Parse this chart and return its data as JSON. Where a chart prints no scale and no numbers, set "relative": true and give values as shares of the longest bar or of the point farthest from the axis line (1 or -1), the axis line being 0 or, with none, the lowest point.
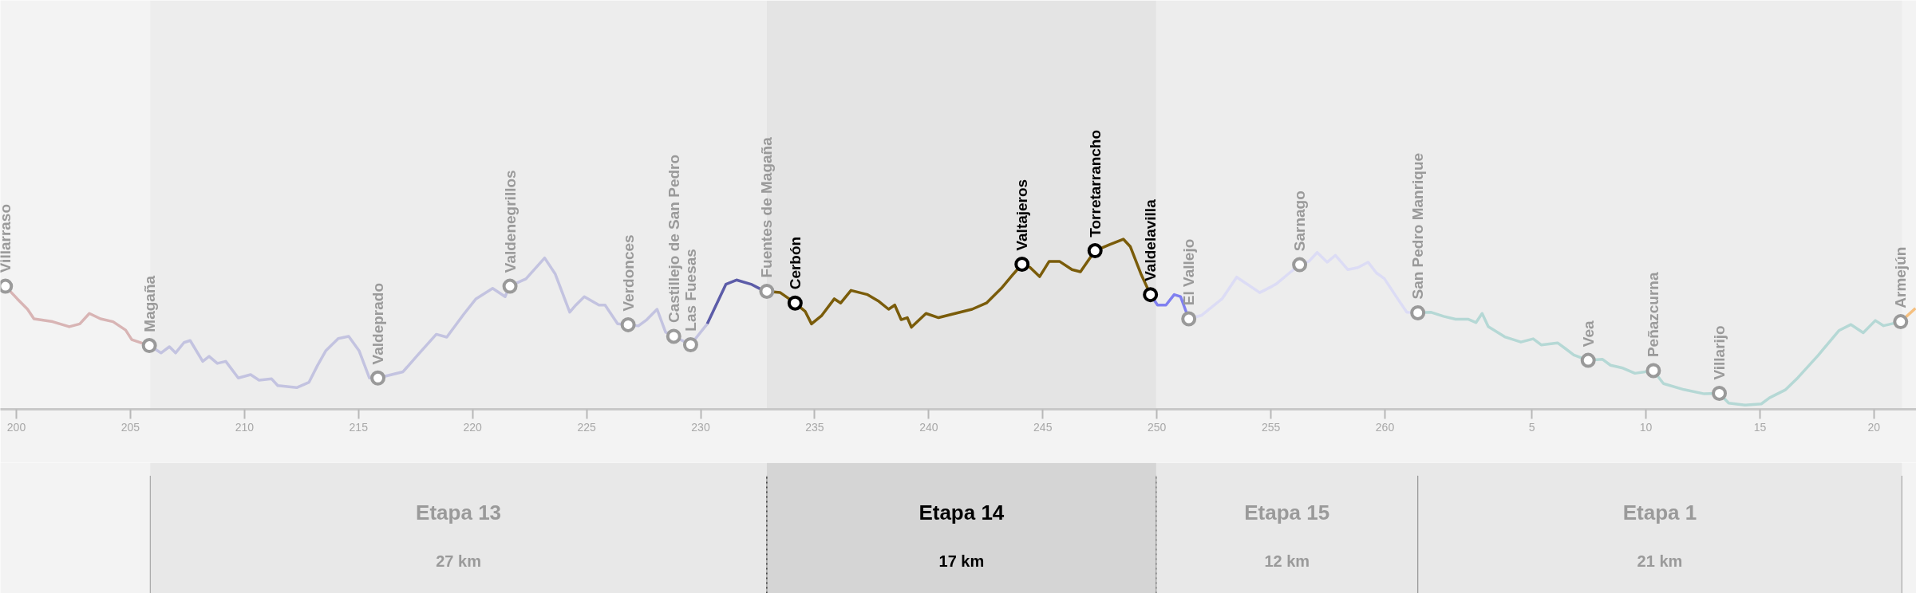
{
  "chart_data": {
    "type": "line",
    "relative": true,
    "line_style": "solid",
    "grid": false,
    "x2lim": [
      -62.14,
      21.86
    ],
    "x2ticks": [
      5,
      10,
      15,
      20
    ],
    "xlim": [
      199.3,
      283.3
    ],
    "xticks": [
      200,
      205,
      210,
      215,
      220,
      225,
      230,
      235,
      240,
      245,
      250,
      255,
      260
    ],
    "series": [
      {
        "color": "#d8b4b4",
        "x": [
          199.52,
          200.04,
          200.49,
          200.77,
          201.59,
          202.32,
          202.78,
          203.2,
          203.69,
          204.24,
          204.79,
          205.06,
          205.83
        ],
        "values": [
          0.72,
          0.645,
          0.583,
          0.526,
          0.509,
          0.479,
          0.496,
          0.558,
          0.526,
          0.509,
          0.459,
          0.402,
          0.367
        ]
      },
      {
        "color": "#c3c3e0",
        "x": [
          205.83,
          206.34,
          206.71,
          206.98,
          207.35,
          207.62,
          208.17,
          208.45,
          208.81,
          209.18,
          209.73,
          210.27,
          210.64,
          211.19,
          211.46,
          212.29,
          212.83,
          213.2,
          213.56,
          214.11,
          214.57,
          215.03,
          215.48,
          215.85,
          216.95,
          217.59,
          218.41,
          218.87,
          219.6,
          220.15,
          220.88,
          221.43,
          221.61,
          222.34,
          223.16,
          223.62,
          224.26,
          224.53,
          224.9,
          225.54,
          225.81,
          226.36,
          226.82,
          227.27,
          227.64,
          228.09,
          228.46,
          228.82,
          229.56,
          230.29
        ],
        "values": [
          0.367,
          0.323,
          0.36,
          0.323,
          0.385,
          0.397,
          0.273,
          0.303,
          0.261,
          0.273,
          0.174,
          0.194,
          0.161,
          0.169,
          0.129,
          0.117,
          0.149,
          0.248,
          0.335,
          0.409,
          0.422,
          0.335,
          0.174,
          0.174,
          0.211,
          0.31,
          0.434,
          0.417,
          0.551,
          0.645,
          0.707,
          0.658,
          0.72,
          0.764,
          0.888,
          0.794,
          0.566,
          0.608,
          0.658,
          0.608,
          0.608,
          0.496,
          0.491,
          0.484,
          0.521,
          0.583,
          0.447,
          0.422,
          0.372,
          0.496
        ]
      },
      {
        "color": "#5c5ca8",
        "x": [
          230.29,
          231.11,
          231.57,
          232.21,
          232.57,
          232.9
        ],
        "values": [
          0.496,
          0.732,
          0.757,
          0.732,
          0.707,
          0.69
        ]
      },
      {
        "color": "#7a5c0a",
        "x": [
          232.9,
          233.49,
          234.14,
          234.58,
          234.86,
          235.31,
          235.86,
          236.14,
          236.59,
          237.32,
          237.78,
          238.24,
          238.51,
          238.79,
          239.06,
          239.24,
          239.88,
          240.43,
          241.16,
          241.9,
          242.53,
          243.18,
          243.72,
          244.09,
          244.45,
          244.86,
          245.28,
          245.73,
          246.28,
          246.65,
          247.29,
          247.93,
          248.53,
          248.84,
          249.3,
          249.72
        ],
        "values": [
          0.69,
          0.682,
          0.62,
          0.571,
          0.496,
          0.546,
          0.645,
          0.62,
          0.695,
          0.67,
          0.633,
          0.583,
          0.608,
          0.521,
          0.533,
          0.476,
          0.558,
          0.533,
          0.558,
          0.583,
          0.62,
          0.707,
          0.794,
          0.851,
          0.831,
          0.777,
          0.868,
          0.868,
          0.819,
          0.806,
          0.931,
          0.968,
          1.0,
          0.955,
          0.794,
          0.67
        ]
      },
      {
        "color": "#8080f0",
        "x": [
          249.72,
          250.03,
          250.4,
          250.76,
          251.04,
          251.4
        ],
        "values": [
          0.67,
          0.608,
          0.608,
          0.67,
          0.658,
          0.526
        ]
      },
      {
        "color": "#dcdcf5",
        "x": [
          251.4,
          251.95,
          252.86,
          253.5,
          253.96,
          254.51,
          255.06,
          255.24,
          255.78,
          256.26,
          256.67,
          257.03,
          257.47,
          257.83,
          258.37,
          258.81,
          259.26,
          259.62,
          259.97,
          260.6,
          260.96,
          261.44
        ],
        "values": [
          0.526,
          0.546,
          0.645,
          0.774,
          0.732,
          0.682,
          0.72,
          0.734,
          0.795,
          0.848,
          0.868,
          0.921,
          0.863,
          0.904,
          0.819,
          0.831,
          0.863,
          0.8,
          0.766,
          0.637,
          0.565,
          0.562
        ]
      },
      {
        "color": "#b5d8d5",
        "x": [
          261.44,
          262.03,
          262.57,
          263.1,
          263.64,
          263.99,
          264.26,
          264.53,
          265.25,
          265.96,
          266.5,
          266.85,
          267.57,
          267.93,
          268.28,
          268.91,
          269.53,
          269.89,
          270.43,
          270.96,
          271.77,
          272.21,
          273.11,
          274.0,
          274.66,
          275.07,
          275.79,
          276.5,
          276.86,
          277.57,
          278.11,
          279.0,
          279.9,
          280.43,
          280.97,
          281.5,
          281.86,
          282.61
        ],
        "values": [
          0.562,
          0.565,
          0.541,
          0.524,
          0.524,
          0.504,
          0.558,
          0.48,
          0.419,
          0.388,
          0.407,
          0.371,
          0.383,
          0.347,
          0.311,
          0.279,
          0.286,
          0.25,
          0.233,
          0.202,
          0.218,
          0.141,
          0.105,
          0.08,
          0.083,
          0.025,
          0.013,
          0.02,
          0.056,
          0.105,
          0.177,
          0.31,
          0.456,
          0.492,
          0.443,
          0.516,
          0.485,
          0.509
        ]
      },
      {
        "color": "#f5c080",
        "x": [
          282.61,
          283.26
        ],
        "values": [
          0.509,
          0.589
        ]
      }
    ],
    "annotations": [
      {
        "text": "Villarraso",
        "x": 199.52,
        "y": 0.72
      },
      {
        "text": "Magaña",
        "x": 205.83,
        "y": 0.367
      },
      {
        "text": "Valdeprado",
        "x": 215.85,
        "y": 0.174
      },
      {
        "text": "Valdenegrillos",
        "x": 221.64,
        "y": 0.72
      },
      {
        "text": "Verdonces",
        "x": 226.82,
        "y": 0.491
      },
      {
        "text": "Castillejo de San Pedro",
        "x": 228.82,
        "y": 0.422
      },
      {
        "text": "Las Fuesas",
        "x": 229.56,
        "y": 0.372
      },
      {
        "text": "Fuentes de Magaña",
        "x": 232.9,
        "y": 0.69
      },
      {
        "text": "Cerbón",
        "x": 234.14,
        "y": 0.62
      },
      {
        "text": "Valtajeros",
        "x": 244.09,
        "y": 0.851
      },
      {
        "text": "Torretarrancho",
        "x": 247.29,
        "y": 0.931
      },
      {
        "text": "Valdelavilla",
        "x": 249.72,
        "y": 0.67
      },
      {
        "text": "El Vallejo",
        "x": 251.4,
        "y": 0.526
      },
      {
        "text": "Sarnago",
        "x": 256.26,
        "y": 0.848
      },
      {
        "text": "San Pedro Manrique",
        "x": 261.44,
        "y": 0.562
      },
      {
        "text": "Vea",
        "x": 268.91,
        "y": 0.279
      },
      {
        "text": "Peñazcurna",
        "x": 271.77,
        "y": 0.218
      },
      {
        "text": "Villarijo",
        "x": 274.66,
        "y": 0.083
      },
      {
        "text": "Armejún",
        "x": 282.61,
        "y": 0.509
      }
    ],
    "bands": [
      {
        "axis": "x",
        "from": 205.87,
        "to": 232.9,
        "label": "Etapa 13\n27 km",
        "color": "#9a9a9a"
      },
      {
        "axis": "x",
        "from": 232.9,
        "to": 249.97,
        "label": "Etapa 14\n17 km",
        "color": "#000000"
      },
      {
        "axis": "x",
        "from": 249.97,
        "to": 261.44,
        "label": "Etapa 15\n12 km",
        "color": "#9a9a9a"
      },
      {
        "axis": "x",
        "from": 261.44,
        "to": 282.66,
        "label": "Etapa 1\n21 km",
        "color": "#9a9a9a"
      }
    ]
  }
}
